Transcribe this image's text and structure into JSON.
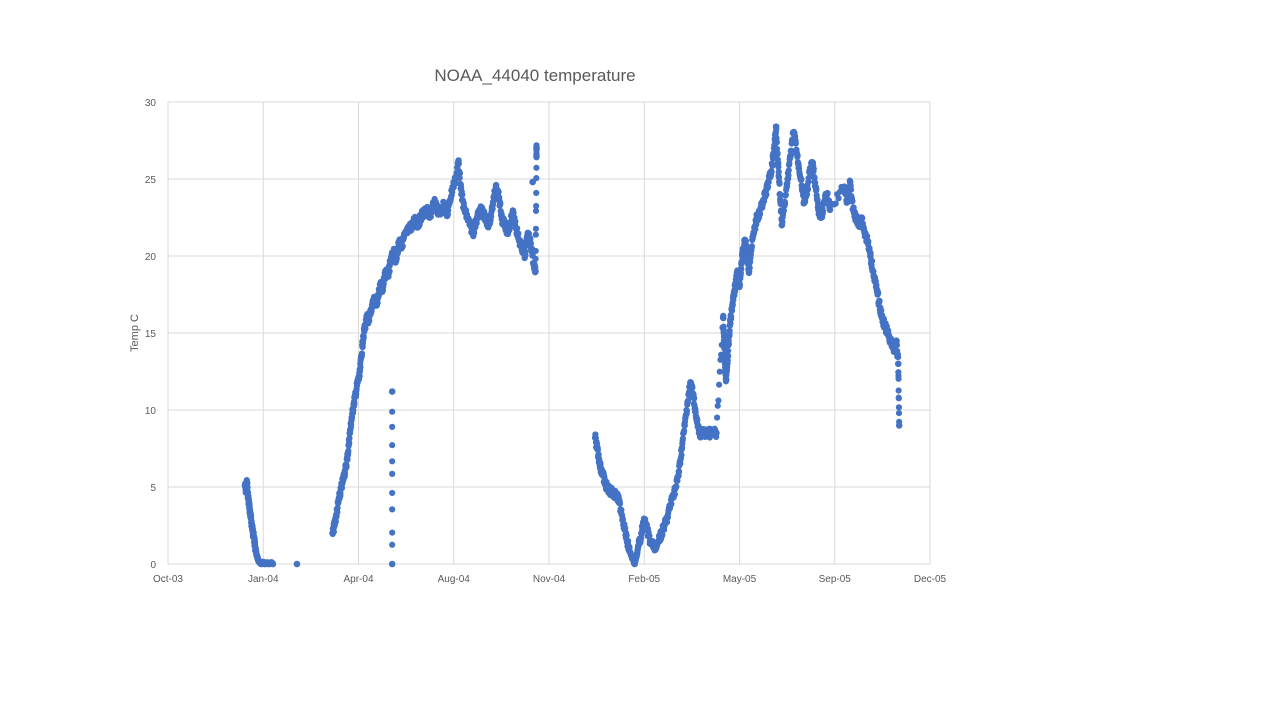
{
  "chart_data": {
    "type": "scatter",
    "title": "NOAA_44040 temperature",
    "xlabel": "",
    "ylabel": "Temp  C",
    "x_ticks": [
      "Oct-03",
      "Jan-04",
      "Apr-04",
      "Aug-04",
      "Nov-04",
      "Feb-05",
      "May-05",
      "Sep-05",
      "Dec-05"
    ],
    "xlim": [
      "2003-10-01",
      "2005-12-01"
    ],
    "y_ticks": [
      "0",
      "5",
      "10",
      "15",
      "20",
      "25",
      "30"
    ],
    "ylim": [
      0,
      30
    ],
    "grid": true,
    "legend": "none",
    "color": "#4472c4",
    "series": [
      {
        "points": [
          [
            "2003-12-20",
            5.1
          ],
          [
            "2003-12-21",
            4.8
          ],
          [
            "2003-12-22",
            5.3
          ],
          [
            "2003-12-23",
            4.5
          ],
          [
            "2003-12-24",
            4.0
          ],
          [
            "2003-12-25",
            3.5
          ],
          [
            "2003-12-26",
            3.0
          ],
          [
            "2003-12-27",
            2.6
          ],
          [
            "2003-12-28",
            2.2
          ],
          [
            "2003-12-29",
            1.8
          ],
          [
            "2003-12-30",
            1.4
          ],
          [
            "2003-12-31",
            1.0
          ],
          [
            "2004-01-01",
            0.6
          ],
          [
            "2004-01-02",
            0.4
          ],
          [
            "2004-01-03",
            0.2
          ],
          [
            "2004-01-04",
            0.1
          ],
          [
            "2004-01-06",
            0.0
          ],
          [
            "2004-01-08",
            0.1
          ],
          [
            "2004-01-10",
            0.0
          ],
          [
            "2004-01-12",
            0.1
          ],
          [
            "2004-01-14",
            0.0
          ],
          [
            "2004-01-16",
            0.1
          ],
          [
            "2004-01-18",
            0.0
          ],
          [
            "2004-02-12",
            0.0
          ],
          [
            "2004-03-20",
            2.0
          ],
          [
            "2004-03-22",
            2.5
          ],
          [
            "2004-03-24",
            3.2
          ],
          [
            "2004-03-26",
            4.0
          ],
          [
            "2004-03-28",
            4.6
          ],
          [
            "2004-03-30",
            5.2
          ],
          [
            "2004-04-01",
            5.8
          ],
          [
            "2004-04-03",
            6.3
          ],
          [
            "2004-04-05",
            7.2
          ],
          [
            "2004-04-07",
            8.5
          ],
          [
            "2004-04-09",
            9.5
          ],
          [
            "2004-04-11",
            10.4
          ],
          [
            "2004-04-13",
            11.0
          ],
          [
            "2004-04-15",
            11.8
          ],
          [
            "2004-04-17",
            12.2
          ],
          [
            "2004-04-19",
            13.5
          ],
          [
            "2004-04-21",
            14.8
          ],
          [
            "2004-04-23",
            15.5
          ],
          [
            "2004-04-25",
            16.0
          ],
          [
            "2004-04-27",
            15.8
          ],
          [
            "2004-04-29",
            16.5
          ],
          [
            "2004-05-01",
            17.0
          ],
          [
            "2004-05-03",
            17.2
          ],
          [
            "2004-05-05",
            16.8
          ],
          [
            "2004-05-07",
            17.5
          ],
          [
            "2004-05-09",
            18.2
          ],
          [
            "2004-05-11",
            17.8
          ],
          [
            "2004-05-13",
            18.6
          ],
          [
            "2004-05-15",
            19.0
          ],
          [
            "2004-05-17",
            18.8
          ],
          [
            "2004-05-19",
            19.5
          ],
          [
            "2004-05-21",
            20.0
          ],
          [
            "2004-05-23",
            20.2
          ],
          [
            "2004-05-25",
            19.7
          ],
          [
            "2004-05-27",
            20.5
          ],
          [
            "2004-05-29",
            21.0
          ],
          [
            "2004-05-31",
            20.6
          ],
          [
            "2004-06-02",
            21.2
          ],
          [
            "2004-06-05",
            21.5
          ],
          [
            "2004-06-08",
            21.8
          ],
          [
            "2004-06-11",
            22.0
          ],
          [
            "2004-06-14",
            22.4
          ],
          [
            "2004-06-17",
            22.0
          ],
          [
            "2004-06-20",
            22.6
          ],
          [
            "2004-06-23",
            22.8
          ],
          [
            "2004-06-26",
            23.0
          ],
          [
            "2004-06-29",
            22.5
          ],
          [
            "2004-07-02",
            23.2
          ],
          [
            "2004-07-05",
            23.5
          ],
          [
            "2004-07-08",
            22.8
          ],
          [
            "2004-07-11",
            23.0
          ],
          [
            "2004-07-14",
            23.4
          ],
          [
            "2004-07-17",
            22.6
          ],
          [
            "2004-07-20",
            23.6
          ],
          [
            "2004-07-23",
            24.5
          ],
          [
            "2004-07-26",
            25.0
          ],
          [
            "2004-07-29",
            26.2
          ],
          [
            "2004-08-01",
            24.0
          ],
          [
            "2004-08-04",
            23.0
          ],
          [
            "2004-08-07",
            22.5
          ],
          [
            "2004-08-10",
            22.0
          ],
          [
            "2004-08-13",
            21.5
          ],
          [
            "2004-08-16",
            22.2
          ],
          [
            "2004-08-19",
            22.8
          ],
          [
            "2004-08-22",
            23.0
          ],
          [
            "2004-08-25",
            22.6
          ],
          [
            "2004-08-28",
            22.0
          ],
          [
            "2004-08-31",
            22.4
          ],
          [
            "2004-09-03",
            23.5
          ],
          [
            "2004-09-06",
            24.6
          ],
          [
            "2004-09-09",
            23.8
          ],
          [
            "2004-09-12",
            22.4
          ],
          [
            "2004-09-15",
            22.0
          ],
          [
            "2004-09-18",
            21.6
          ],
          [
            "2004-09-21",
            22.2
          ],
          [
            "2004-09-24",
            22.8
          ],
          [
            "2004-09-27",
            21.8
          ],
          [
            "2004-09-30",
            21.0
          ],
          [
            "2004-10-03",
            20.5
          ],
          [
            "2004-10-06",
            20.0
          ],
          [
            "2004-10-09",
            21.5
          ],
          [
            "2004-10-12",
            20.8
          ],
          [
            "2004-10-15",
            19.5
          ],
          [
            "2004-10-17",
            19.0
          ],
          [
            "2004-10-18",
            26.5
          ],
          [
            "2004-10-18",
            27.0
          ],
          [
            "2004-10-14",
            24.8
          ],
          [
            "2004-05-21",
            11.2
          ],
          [
            "2004-05-21",
            0.0
          ],
          [
            "2004-12-18",
            8.2
          ],
          [
            "2004-12-20",
            7.5
          ],
          [
            "2004-12-22",
            6.8
          ],
          [
            "2004-12-24",
            6.2
          ],
          [
            "2004-12-26",
            5.8
          ],
          [
            "2004-12-28",
            5.3
          ],
          [
            "2004-12-30",
            5.0
          ],
          [
            "2005-01-02",
            4.8
          ],
          [
            "2005-01-05",
            4.6
          ],
          [
            "2005-01-08",
            4.5
          ],
          [
            "2005-01-11",
            4.2
          ],
          [
            "2005-01-14",
            3.5
          ],
          [
            "2005-01-17",
            2.5
          ],
          [
            "2005-01-20",
            1.5
          ],
          [
            "2005-01-23",
            0.8
          ],
          [
            "2005-01-26",
            0.3
          ],
          [
            "2005-01-28",
            0.0
          ],
          [
            "2005-01-30",
            0.5
          ],
          [
            "2005-02-01",
            1.2
          ],
          [
            "2005-02-04",
            2.0
          ],
          [
            "2005-02-07",
            2.8
          ],
          [
            "2005-02-10",
            2.2
          ],
          [
            "2005-02-13",
            1.5
          ],
          [
            "2005-02-16",
            1.2
          ],
          [
            "2005-02-19",
            1.0
          ],
          [
            "2005-02-22",
            1.5
          ],
          [
            "2005-02-25",
            2.0
          ],
          [
            "2005-02-28",
            2.5
          ],
          [
            "2005-03-03",
            3.0
          ],
          [
            "2005-03-06",
            3.8
          ],
          [
            "2005-03-09",
            4.5
          ],
          [
            "2005-03-12",
            5.0
          ],
          [
            "2005-03-15",
            6.0
          ],
          [
            "2005-03-18",
            7.5
          ],
          [
            "2005-03-21",
            9.0
          ],
          [
            "2005-03-24",
            10.5
          ],
          [
            "2005-03-27",
            11.8
          ],
          [
            "2005-03-30",
            11.0
          ],
          [
            "2005-04-02",
            9.5
          ],
          [
            "2005-04-05",
            8.5
          ],
          [
            "2005-04-08",
            8.5
          ],
          [
            "2005-04-11",
            8.5
          ],
          [
            "2005-04-14",
            8.5
          ],
          [
            "2005-04-17",
            8.5
          ],
          [
            "2005-04-20",
            8.5
          ],
          [
            "2005-04-23",
            8.5
          ],
          [
            "2005-04-30",
            16.0
          ],
          [
            "2005-05-01",
            14.5
          ],
          [
            "2005-05-02",
            13.0
          ],
          [
            "2005-05-03",
            12.0
          ],
          [
            "2005-05-05",
            13.5
          ],
          [
            "2005-05-07",
            15.5
          ],
          [
            "2005-05-09",
            16.5
          ],
          [
            "2005-05-11",
            17.5
          ],
          [
            "2005-05-13",
            18.2
          ],
          [
            "2005-05-15",
            19.0
          ],
          [
            "2005-05-17",
            18.0
          ],
          [
            "2005-05-19",
            19.5
          ],
          [
            "2005-05-21",
            20.5
          ],
          [
            "2005-05-23",
            21.0
          ],
          [
            "2005-05-25",
            20.0
          ],
          [
            "2005-05-27",
            19.0
          ],
          [
            "2005-05-29",
            20.5
          ],
          [
            "2005-06-01",
            21.5
          ],
          [
            "2005-06-04",
            22.5
          ],
          [
            "2005-06-07",
            22.8
          ],
          [
            "2005-06-10",
            23.5
          ],
          [
            "2005-06-13",
            24.0
          ],
          [
            "2005-06-16",
            24.8
          ],
          [
            "2005-06-19",
            25.5
          ],
          [
            "2005-06-22",
            27.0
          ],
          [
            "2005-06-24",
            28.4
          ],
          [
            "2005-06-26",
            26.0
          ],
          [
            "2005-06-28",
            24.0
          ],
          [
            "2005-06-30",
            22.0
          ],
          [
            "2005-07-03",
            23.5
          ],
          [
            "2005-07-06",
            25.0
          ],
          [
            "2005-07-09",
            26.5
          ],
          [
            "2005-07-12",
            28.0
          ],
          [
            "2005-07-14",
            27.5
          ],
          [
            "2005-07-17",
            26.0
          ],
          [
            "2005-07-20",
            25.0
          ],
          [
            "2005-07-23",
            23.5
          ],
          [
            "2005-07-26",
            24.0
          ],
          [
            "2005-07-29",
            25.5
          ],
          [
            "2005-08-01",
            26.0
          ],
          [
            "2005-08-04",
            24.5
          ],
          [
            "2005-08-07",
            23.0
          ],
          [
            "2005-08-10",
            22.5
          ],
          [
            "2005-08-13",
            23.5
          ],
          [
            "2005-08-16",
            24.0
          ],
          [
            "2005-08-19",
            23.0
          ],
          [
            "2005-09-03",
            24.5
          ],
          [
            "2005-09-06",
            23.5
          ],
          [
            "2005-09-09",
            24.8
          ],
          [
            "2005-09-12",
            23.0
          ],
          [
            "2005-09-15",
            22.5
          ],
          [
            "2005-09-18",
            22.0
          ],
          [
            "2005-09-21",
            22.5
          ],
          [
            "2005-09-24",
            21.5
          ],
          [
            "2005-09-27",
            21.0
          ],
          [
            "2005-09-30",
            20.0
          ],
          [
            "2005-10-03",
            19.0
          ],
          [
            "2005-10-06",
            18.0
          ],
          [
            "2005-10-09",
            17.0
          ],
          [
            "2005-10-12",
            16.0
          ],
          [
            "2005-10-15",
            15.5
          ],
          [
            "2005-10-18",
            15.0
          ],
          [
            "2005-10-21",
            14.5
          ],
          [
            "2005-10-24",
            14.0
          ],
          [
            "2005-10-27",
            14.5
          ],
          [
            "2005-10-29",
            13.0
          ],
          [
            "2005-10-30",
            9.0
          ]
        ]
      }
    ]
  }
}
